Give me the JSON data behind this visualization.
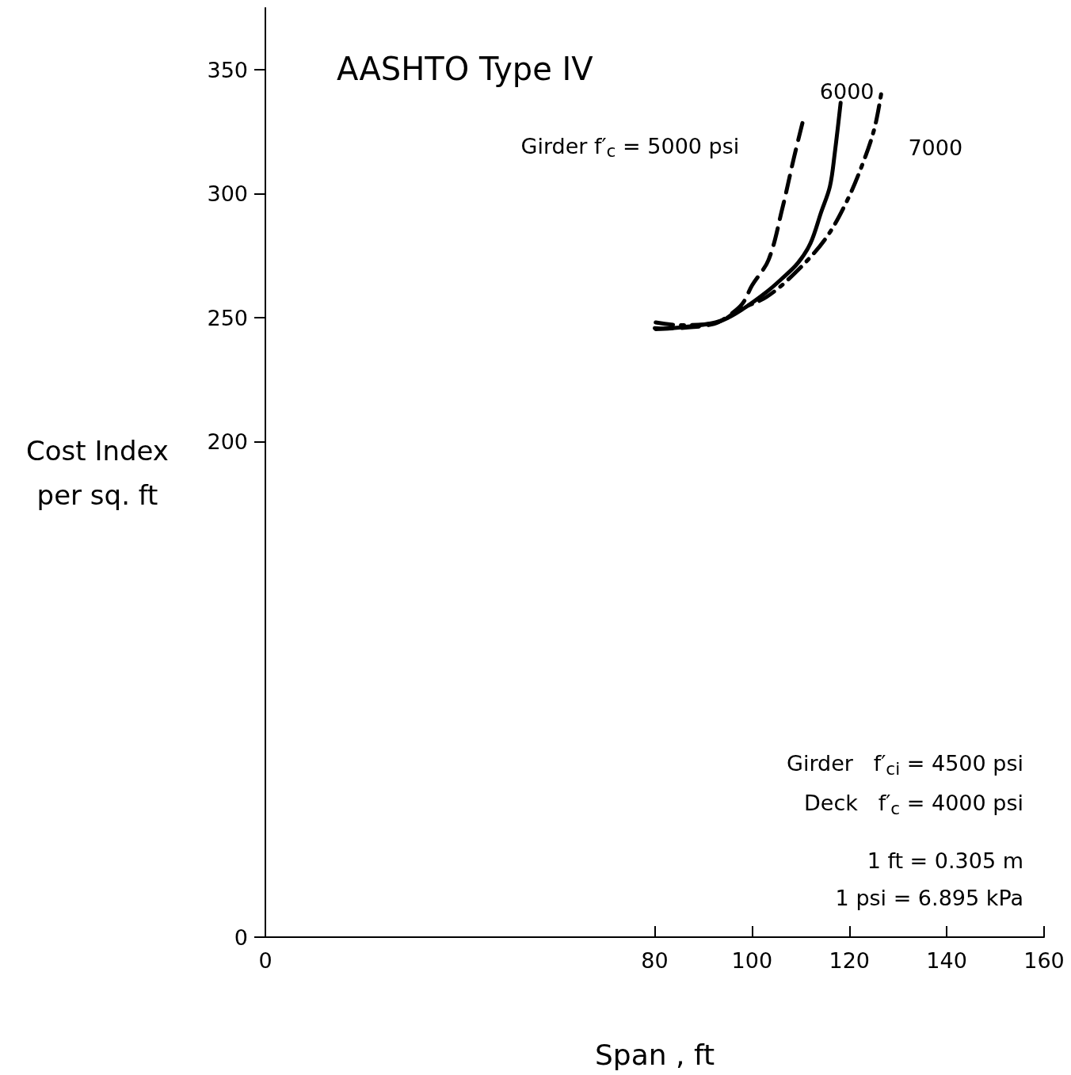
{
  "chart_data": {
    "type": "line",
    "title": "AASHTO Type IV",
    "xlabel": "Span , ft",
    "ylabel": "Cost Index\nper sq. ft",
    "xlim": [
      0,
      160
    ],
    "xticks": [
      0,
      80,
      100,
      120,
      140,
      160
    ],
    "ylim": [
      0,
      375
    ],
    "yticks": [
      0,
      200,
      250,
      300,
      350
    ],
    "grid": false,
    "legend": false,
    "marker": "none",
    "series": [
      {
        "name": "Girder f′$_{c}$ = 5000 psi",
        "color": "#000000",
        "line_style": "dashed",
        "x": [
          80,
          82,
          85,
          88,
          91,
          93,
          95,
          98,
          100,
          103.4,
          106.2,
          108.6,
          110.6
        ],
        "values": [
          245.8,
          245.6,
          245.8,
          246.2,
          247,
          248.1,
          250.5,
          255.6,
          263,
          273.4,
          293.9,
          314.5,
          330.5
        ]
      },
      {
        "name": "6000",
        "color": "#000000",
        "line_style": "solid",
        "x": [
          80.2,
          85,
          89.7,
          94,
          98.2,
          103,
          106,
          109.4,
          112,
          114.2,
          116,
          117,
          118.2
        ],
        "values": [
          245.4,
          246,
          247.1,
          249,
          253.6,
          260.4,
          265.5,
          272,
          280,
          292.6,
          303,
          316.5,
          336.7
        ]
      },
      {
        "name": "7000",
        "color": "#000000",
        "line_style": "dashdot",
        "x": [
          80.2,
          85,
          90,
          94,
          97.4,
          103,
          108.8,
          115,
          119.4,
          122.8,
          125.2,
          126.7
        ],
        "values": [
          248.1,
          247,
          247.2,
          249,
          253.3,
          258.4,
          268,
          281.6,
          296.7,
          312.5,
          326.8,
          342.4
        ]
      }
    ],
    "annotations": [
      "Girder   f′$_{ci}$ = 4500 psi",
      "Deck   f′$_{c}$ = 4000 psi",
      "1 ft = 0.305 m",
      "1 psi = 6.895 kPa"
    ]
  }
}
